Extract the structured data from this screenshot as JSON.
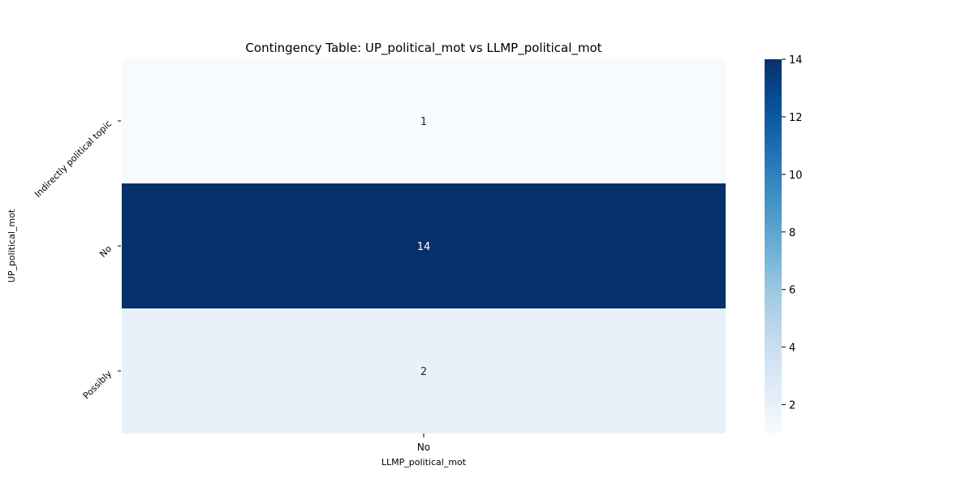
{
  "chart_data": {
    "type": "heatmap",
    "title": "Contingency Table: UP_political_mot vs LLMP_political_mot",
    "xlabel": "LLMP_political_mot",
    "ylabel": "UP_political_mot",
    "x_categories": [
      "No"
    ],
    "y_categories": [
      "Indirectly political topic",
      "No",
      "Possibly"
    ],
    "values": [
      [
        1
      ],
      [
        14
      ],
      [
        2
      ]
    ],
    "colormap": "Blues",
    "color_range": [
      1,
      14
    ],
    "colorbar_ticks": [
      2,
      4,
      6,
      8,
      10,
      12,
      14
    ]
  }
}
